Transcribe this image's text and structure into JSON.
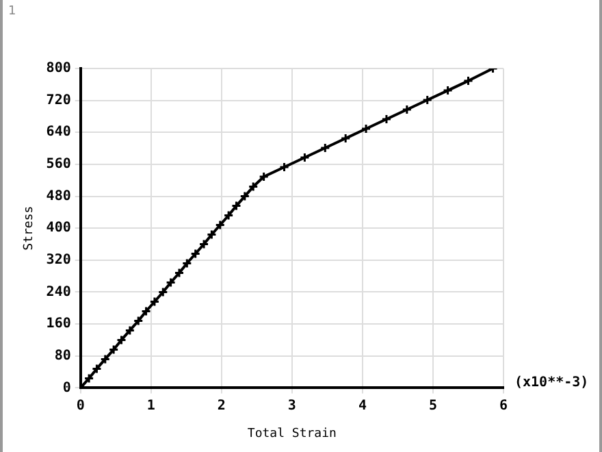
{
  "chart_data": {
    "type": "line",
    "xlabel": "Total Strain",
    "ylabel": "Stress",
    "annotations": [
      "1",
      "(x10**-3)"
    ],
    "x": [
      0,
      0.12,
      0.23,
      0.35,
      0.47,
      0.58,
      0.7,
      0.82,
      0.93,
      1.05,
      1.17,
      1.28,
      1.4,
      1.51,
      1.63,
      1.75,
      1.86,
      1.98,
      2.1,
      2.21,
      2.33,
      2.45,
      2.6,
      2.89,
      3.18,
      3.47,
      3.76,
      4.05,
      4.34,
      4.63,
      4.92,
      5.21,
      5.5,
      5.85
    ],
    "series": [
      {
        "color": "#000000",
        "values": [
          0,
          24,
          48,
          72,
          96,
          120,
          144,
          168,
          192,
          216,
          240,
          264,
          288,
          312,
          336,
          360,
          384,
          408,
          432,
          456,
          480,
          504,
          529,
          553,
          577,
          601,
          625,
          649,
          673,
          697,
          721,
          745,
          769,
          800
        ]
      }
    ],
    "xlim": [
      0,
      6
    ],
    "xticks": [
      0,
      1,
      2,
      3,
      4,
      5,
      6
    ],
    "ylim": [
      0,
      800
    ],
    "yticks": [
      0,
      80,
      160,
      240,
      320,
      400,
      480,
      560,
      640,
      720,
      800
    ],
    "grid": true,
    "legend": false,
    "marker": "cross",
    "line_style": "solid"
  }
}
